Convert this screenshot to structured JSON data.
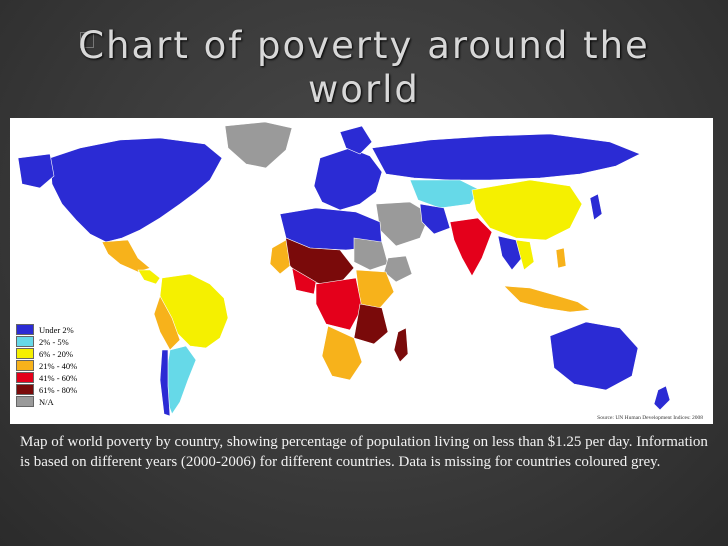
{
  "slide": {
    "title": "Chart of poverty around the world",
    "caption": "Map of world poverty by country, showing percentage of population living on less than $1.25 per day. Information is based on different years (2000-2006) for different countries. Data is missing for countries coloured grey."
  },
  "map": {
    "source": "Source: UN Human Development Indices: 2008",
    "legend": [
      {
        "label": "Under 2%",
        "color": "#2b2bd4"
      },
      {
        "label": "2% - 5%",
        "color": "#66d9e8"
      },
      {
        "label": "6% - 20%",
        "color": "#f5f000"
      },
      {
        "label": "21% - 40%",
        "color": "#f7b21b"
      },
      {
        "label": "41% - 60%",
        "color": "#e4001b"
      },
      {
        "label": "61% - 80%",
        "color": "#7a0a0a"
      },
      {
        "label": "N/A",
        "color": "#9a9a9a"
      }
    ]
  }
}
